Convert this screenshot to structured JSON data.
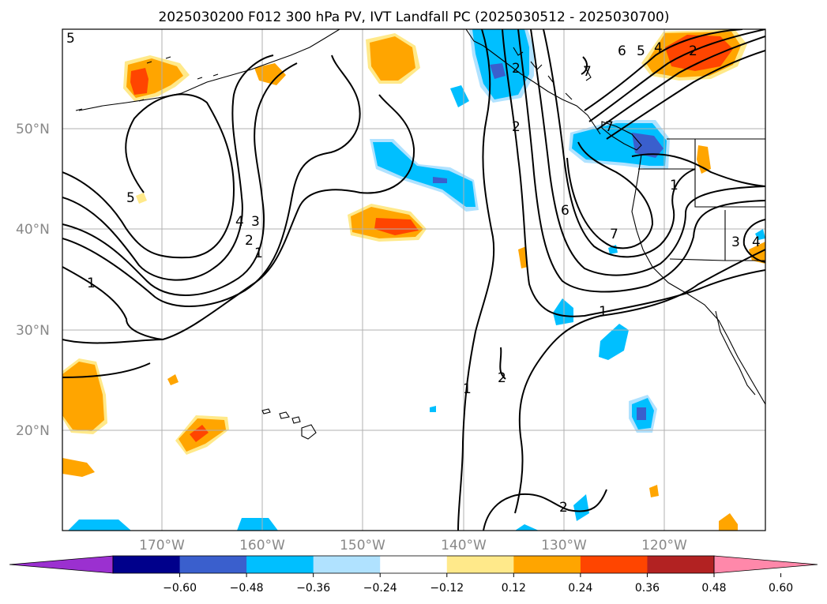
{
  "title": "2025030200 F012 300 hPa PV, IVT Landfall PC (2025030512 - 2025030700)",
  "map": {
    "lat_labels": [
      "50°N",
      "40°N",
      "30°N",
      "20°N"
    ],
    "lon_labels": [
      "170°W",
      "160°W",
      "150°W",
      "140°W",
      "130°W",
      "120°W"
    ],
    "gridlines": true,
    "ocean_color": "#ffffff",
    "land_outline_color": "#000000"
  },
  "colorbar": {
    "ticks": [
      "−0.60",
      "−0.48",
      "−0.36",
      "−0.24",
      "−0.12",
      "0.12",
      "0.24",
      "0.36",
      "0.48",
      "0.60"
    ],
    "colors": [
      "#9b30d0",
      "#00008b",
      "#3a5fcd",
      "#00bfff",
      "#b0e2ff",
      "#ffffff",
      "#ffe98a",
      "#ffa500",
      "#ff4500",
      "#b22222",
      "#ff88aa"
    ],
    "extend": "both"
  },
  "contour_labels": [
    "5",
    "5",
    "4",
    "3",
    "2",
    "1",
    "1",
    "2",
    "2",
    "1",
    "2",
    "2",
    "6",
    "7",
    "5",
    "4",
    "2",
    "7",
    "6",
    "7",
    "1",
    "1",
    "3",
    "4"
  ]
}
